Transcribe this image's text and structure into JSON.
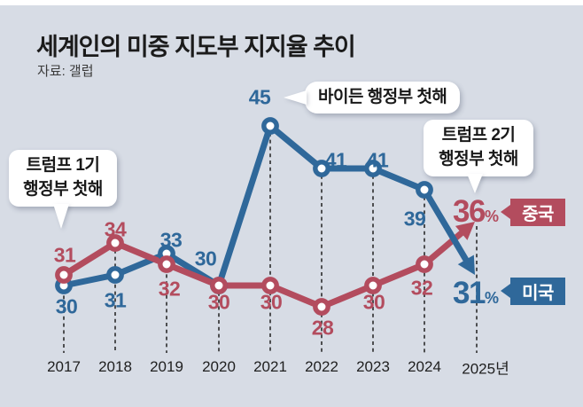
{
  "header": {
    "title": "세계인의 미중 지도부 지지율 추이",
    "source": "자료: 갤럽"
  },
  "chart_data": {
    "type": "line",
    "title": "세계인의 미중 지도부 지지율 추이",
    "source": "자료: 갤럽",
    "categories": [
      "2017",
      "2018",
      "2019",
      "2020",
      "2021",
      "2022",
      "2023",
      "2024",
      "2025년"
    ],
    "series": [
      {
        "name": "미국",
        "color": "#2f689a",
        "values": [
          30,
          31,
          33,
          30,
          45,
          41,
          41,
          39,
          31
        ]
      },
      {
        "name": "중국",
        "color": "#b34c5e",
        "values": [
          31,
          34,
          32,
          30,
          30,
          28,
          30,
          32,
          36
        ]
      }
    ],
    "unit": "%",
    "ylim": [
      26,
      47
    ],
    "grid": "dashed-vertical-per-year",
    "legend_position": "right-end-tags",
    "annotations": [
      "트럼프 1기 행정부 첫해 → 2017",
      "바이든 행정부 첫해 → 2021 (45)",
      "트럼프 2기 행정부 첫해 → 2025"
    ]
  },
  "annotations": {
    "trump1": {
      "line1": "트럼프 1기",
      "line2": "행정부 첫해"
    },
    "biden": {
      "text": "바이든 행정부 첫해"
    },
    "trump2": {
      "line1": "트럼프 2기",
      "line2": "행정부 첫해"
    }
  },
  "end_labels": {
    "china": {
      "value": "36",
      "unit": "%",
      "name": "중국"
    },
    "usa": {
      "value": "31",
      "unit": "%",
      "name": "미국"
    }
  },
  "colors": {
    "background": "#d7dce5",
    "us_blue": "#2f689a",
    "china_red": "#b34c5e",
    "dash": "#2b2b2b"
  }
}
